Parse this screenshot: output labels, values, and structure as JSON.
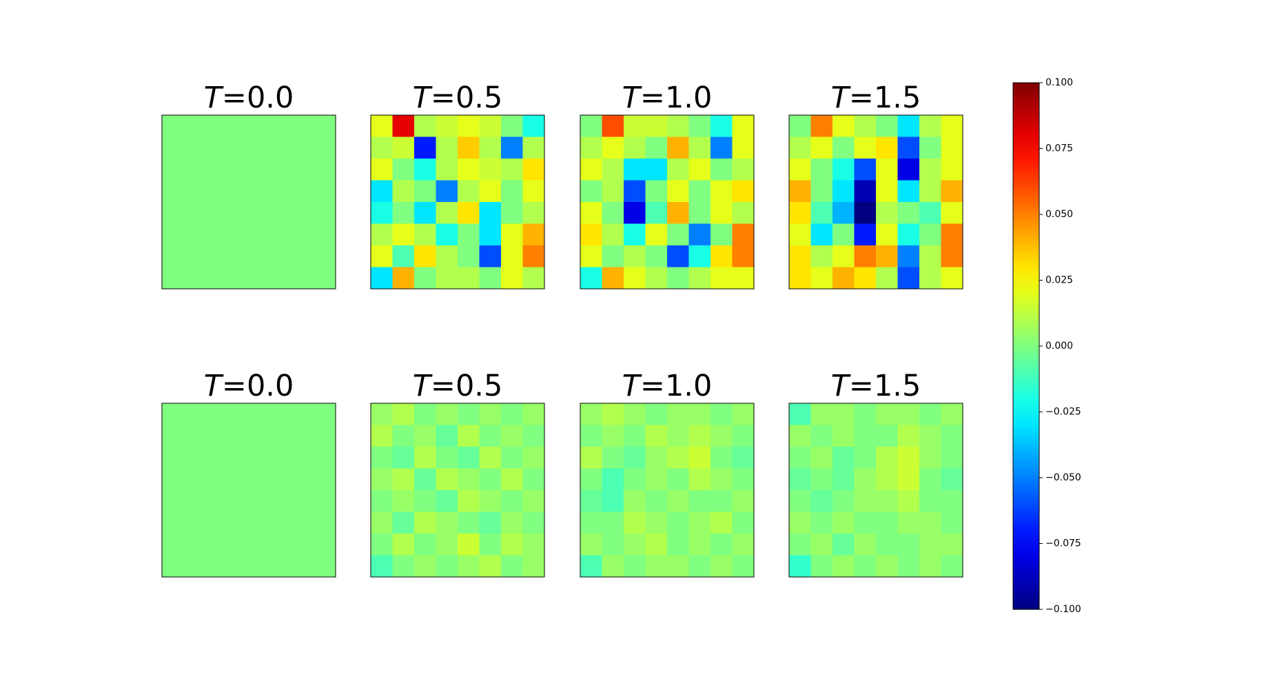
{
  "chart_data": {
    "type": "heatmap",
    "colormap": "jet",
    "panels": [
      {
        "title": "T=0.0",
        "values": [
          [
            0,
            0,
            0,
            0,
            0,
            0,
            0,
            0
          ],
          [
            0,
            0,
            0,
            0,
            0,
            0,
            0,
            0
          ],
          [
            0,
            0,
            0,
            0,
            0,
            0,
            0,
            0
          ],
          [
            0,
            0,
            0,
            0,
            0,
            0,
            0,
            0
          ],
          [
            0,
            0,
            0,
            0,
            0,
            0,
            0,
            0
          ],
          [
            0,
            0,
            0,
            0,
            0,
            0,
            0,
            0
          ],
          [
            0,
            0,
            0,
            0,
            0,
            0,
            0,
            0
          ],
          [
            0,
            0,
            0,
            0,
            0,
            0,
            0,
            0
          ]
        ]
      },
      {
        "title": "T=0.5",
        "values": [
          [
            0.02,
            0.08,
            0.01,
            0.015,
            0.02,
            0.015,
            0.0,
            -0.02
          ],
          [
            0.01,
            0.015,
            -0.07,
            0.01,
            0.035,
            0.01,
            -0.05,
            0.01
          ],
          [
            0.02,
            0.0,
            -0.02,
            0.01,
            0.02,
            0.015,
            0.01,
            0.03
          ],
          [
            -0.03,
            0.01,
            0.0,
            -0.05,
            0.01,
            0.02,
            0.0,
            0.02
          ],
          [
            -0.02,
            0.0,
            -0.03,
            0.01,
            0.03,
            -0.03,
            0.0,
            0.01
          ],
          [
            0.01,
            0.02,
            0.01,
            -0.02,
            0.0,
            -0.03,
            0.02,
            0.04
          ],
          [
            0.02,
            -0.01,
            0.03,
            0.01,
            0.0,
            -0.06,
            0.02,
            0.05
          ],
          [
            -0.03,
            0.04,
            0.0,
            0.01,
            0.01,
            0.0,
            0.02,
            0.01
          ]
        ]
      },
      {
        "title": "T=1.0",
        "values": [
          [
            0.0,
            0.06,
            0.015,
            0.015,
            0.01,
            0.0,
            -0.02,
            0.02
          ],
          [
            0.01,
            0.02,
            0.01,
            0.0,
            0.04,
            0.01,
            -0.05,
            0.02
          ],
          [
            0.02,
            0.01,
            -0.03,
            -0.03,
            0.01,
            0.02,
            0.0,
            0.01
          ],
          [
            0.0,
            0.01,
            -0.06,
            0.0,
            0.02,
            0.0,
            0.02,
            0.03
          ],
          [
            0.02,
            0.0,
            -0.08,
            -0.01,
            0.04,
            0.0,
            0.02,
            0.01
          ],
          [
            0.03,
            0.01,
            -0.02,
            0.02,
            0.0,
            -0.05,
            0.0,
            0.05
          ],
          [
            0.02,
            0.0,
            0.01,
            0.0,
            -0.06,
            -0.02,
            0.03,
            0.05
          ],
          [
            -0.02,
            0.04,
            0.02,
            0.01,
            0.0,
            0.01,
            0.02,
            0.02
          ]
        ]
      },
      {
        "title": "T=1.5",
        "values": [
          [
            0.0,
            0.05,
            0.02,
            0.01,
            0.0,
            -0.03,
            0.01,
            0.02
          ],
          [
            0.01,
            0.02,
            0.0,
            0.02,
            0.03,
            -0.06,
            0.0,
            0.02
          ],
          [
            0.02,
            0.0,
            -0.02,
            -0.06,
            0.02,
            -0.08,
            0.01,
            0.02
          ],
          [
            0.04,
            0.0,
            -0.03,
            -0.09,
            0.02,
            -0.03,
            0.01,
            0.04
          ],
          [
            0.03,
            -0.01,
            -0.04,
            -0.1,
            0.01,
            0.0,
            -0.01,
            0.02
          ],
          [
            0.02,
            -0.03,
            0.0,
            -0.07,
            0.02,
            -0.02,
            0.0,
            0.05
          ],
          [
            0.03,
            0.01,
            0.02,
            0.05,
            0.04,
            -0.05,
            0.01,
            0.05
          ],
          [
            0.03,
            0.02,
            0.04,
            0.03,
            0.01,
            -0.06,
            0.01,
            0.02
          ]
        ]
      },
      {
        "title": "T=0.0",
        "values": [
          [
            0,
            0,
            0,
            0,
            0,
            0,
            0,
            0
          ],
          [
            0,
            0,
            0,
            0,
            0,
            0,
            0,
            0
          ],
          [
            0,
            0,
            0,
            0,
            0,
            0,
            0,
            0
          ],
          [
            0,
            0,
            0,
            0,
            0,
            0,
            0,
            0
          ],
          [
            0,
            0,
            0,
            0,
            0,
            0,
            0,
            0
          ],
          [
            0,
            0,
            0,
            0,
            0,
            0,
            0,
            0
          ],
          [
            0,
            0,
            0,
            0,
            0,
            0,
            0,
            0
          ],
          [
            0,
            0,
            0,
            0,
            0,
            0,
            0,
            0
          ]
        ]
      },
      {
        "title": "T=0.5",
        "values": [
          [
            0.005,
            0.01,
            0.0,
            0.005,
            0.0,
            0.005,
            0.0,
            0.005
          ],
          [
            0.01,
            0.0,
            0.005,
            -0.005,
            0.01,
            0.0,
            0.005,
            0.0
          ],
          [
            0.0,
            -0.005,
            0.01,
            0.0,
            -0.005,
            0.01,
            0.0,
            0.005
          ],
          [
            0.005,
            0.01,
            -0.005,
            0.01,
            0.005,
            0.0,
            0.01,
            0.0
          ],
          [
            0.0,
            0.005,
            0.0,
            -0.005,
            0.01,
            0.005,
            0.0,
            0.005
          ],
          [
            0.005,
            -0.005,
            0.01,
            0.005,
            0.0,
            -0.005,
            0.005,
            0.0
          ],
          [
            0.0,
            0.01,
            0.0,
            0.005,
            0.015,
            0.0,
            0.01,
            0.005
          ],
          [
            -0.01,
            0.0,
            0.005,
            0.0,
            0.005,
            0.01,
            0.0,
            0.005
          ]
        ]
      },
      {
        "title": "T=1.0",
        "values": [
          [
            0.005,
            0.01,
            0.005,
            0.0,
            0.005,
            0.005,
            0.0,
            0.005
          ],
          [
            0.0,
            0.005,
            0.0,
            0.01,
            0.005,
            0.01,
            0.005,
            0.0
          ],
          [
            0.01,
            0.0,
            -0.005,
            0.005,
            0.01,
            0.015,
            0.0,
            -0.005
          ],
          [
            0.0,
            -0.01,
            0.0,
            0.005,
            0.0,
            0.01,
            0.005,
            0.0
          ],
          [
            -0.005,
            -0.01,
            0.005,
            0.0,
            0.005,
            0.0,
            0.0,
            0.005
          ],
          [
            0.0,
            0.0,
            0.01,
            0.005,
            0.0,
            0.005,
            0.01,
            0.0
          ],
          [
            0.005,
            0.0,
            0.005,
            0.01,
            0.0,
            0.005,
            0.0,
            0.005
          ],
          [
            -0.01,
            0.005,
            0.0,
            0.005,
            0.005,
            0.0,
            0.005,
            0.0
          ]
        ]
      },
      {
        "title": "T=1.5",
        "values": [
          [
            -0.01,
            0.005,
            0.005,
            0.0,
            0.005,
            0.005,
            0.0,
            0.005
          ],
          [
            0.005,
            0.0,
            0.005,
            0.0,
            0.0,
            0.01,
            0.005,
            0.0
          ],
          [
            0.0,
            0.005,
            -0.005,
            0.0,
            0.01,
            0.015,
            0.005,
            0.0
          ],
          [
            -0.005,
            0.0,
            -0.005,
            0.005,
            0.01,
            0.015,
            0.0,
            -0.005
          ],
          [
            0.0,
            -0.005,
            0.0,
            0.005,
            0.005,
            0.01,
            0.0,
            0.0
          ],
          [
            0.005,
            0.0,
            0.005,
            0.0,
            0.0,
            0.005,
            0.005,
            0.0
          ],
          [
            0.0,
            0.005,
            -0.005,
            0.005,
            0.0,
            0.0,
            0.005,
            0.005
          ],
          [
            -0.015,
            0.0,
            0.005,
            0.0,
            0.005,
            0.0,
            0.005,
            0.0
          ]
        ]
      }
    ],
    "colorbar": {
      "ylim": [
        -0.1,
        0.1
      ],
      "yticks": [
        {
          "value": -0.1,
          "label": "−0.100"
        },
        {
          "value": -0.075,
          "label": "−0.075"
        },
        {
          "value": -0.05,
          "label": "−0.050"
        },
        {
          "value": -0.025,
          "label": "−0.025"
        },
        {
          "value": 0,
          "label": "0.000"
        },
        {
          "value": 0.025,
          "label": "0.025"
        },
        {
          "value": 0.05,
          "label": "0.050"
        },
        {
          "value": 0.075,
          "label": "0.075"
        },
        {
          "value": 0.1,
          "label": "0.100"
        }
      ]
    }
  }
}
